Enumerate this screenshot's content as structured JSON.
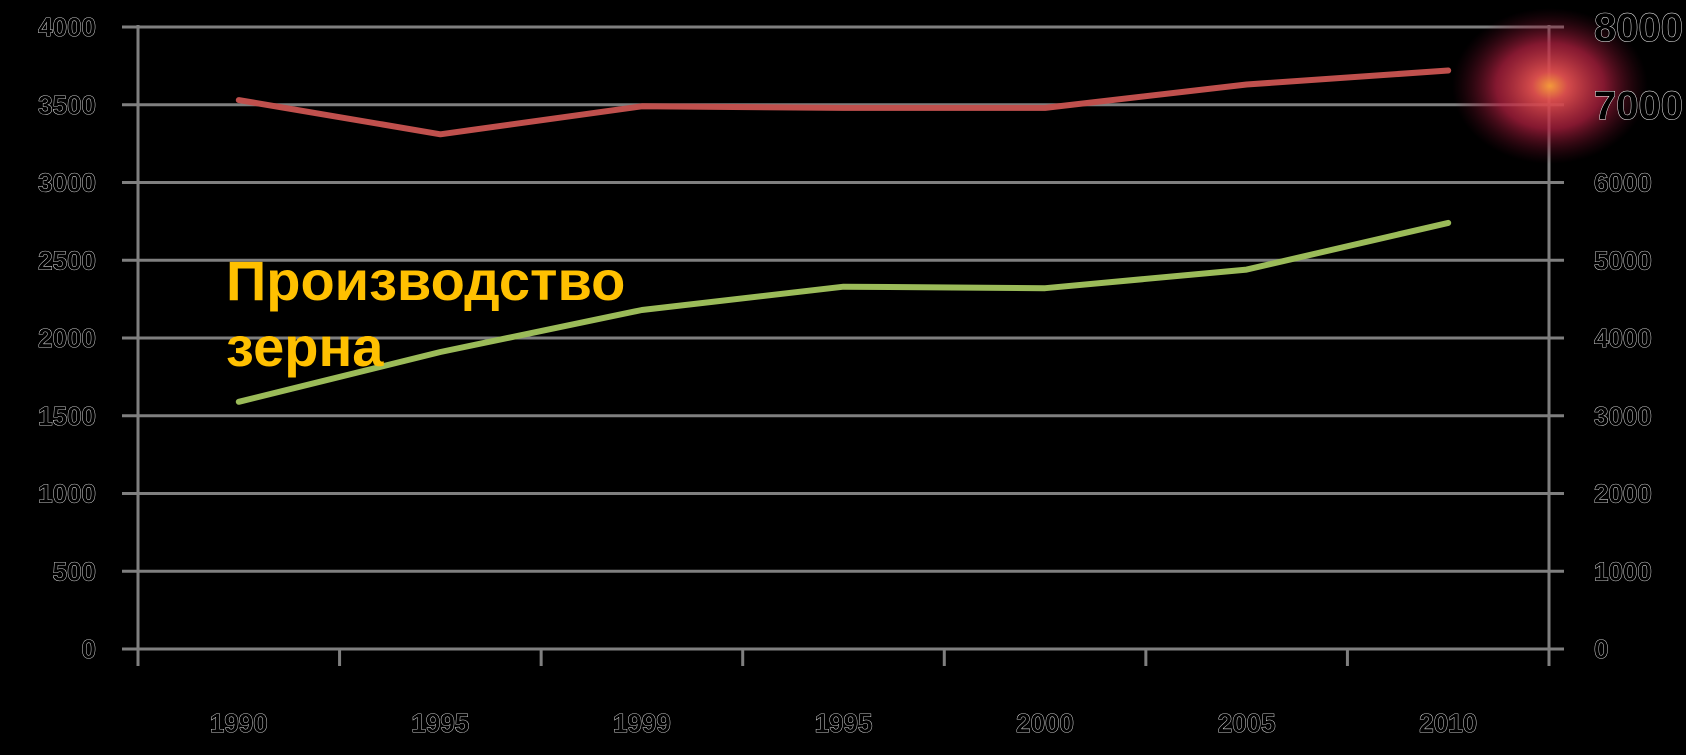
{
  "chart_data": {
    "type": "line",
    "categories": [
      "1990",
      "1995",
      "1999",
      "1995",
      "2000",
      "2005",
      "2010"
    ],
    "left_axis": {
      "ticks": [
        "0",
        "500",
        "1000",
        "1500",
        "2000",
        "2500",
        "3000",
        "3500",
        "4000"
      ],
      "ylim": [
        0,
        4000
      ]
    },
    "right_axis": {
      "ticks": [
        "0",
        "1000",
        "2000",
        "3000",
        "4000",
        "5000",
        "6000",
        "7000",
        "8000"
      ],
      "ylim": [
        0,
        8000
      ]
    },
    "series": [
      {
        "axis": "left",
        "color": "#C0504D",
        "values": [
          3530,
          3310,
          3490,
          3480,
          3480,
          3630,
          3720
        ]
      },
      {
        "axis": "left",
        "color": "#9BBB59",
        "values": [
          1590,
          1910,
          2180,
          2330,
          2320,
          2440,
          2740
        ]
      }
    ],
    "annotation": {
      "lines": [
        "Производство",
        "зерна"
      ],
      "color": "#FFC000"
    },
    "grid": true,
    "legend": "none"
  }
}
